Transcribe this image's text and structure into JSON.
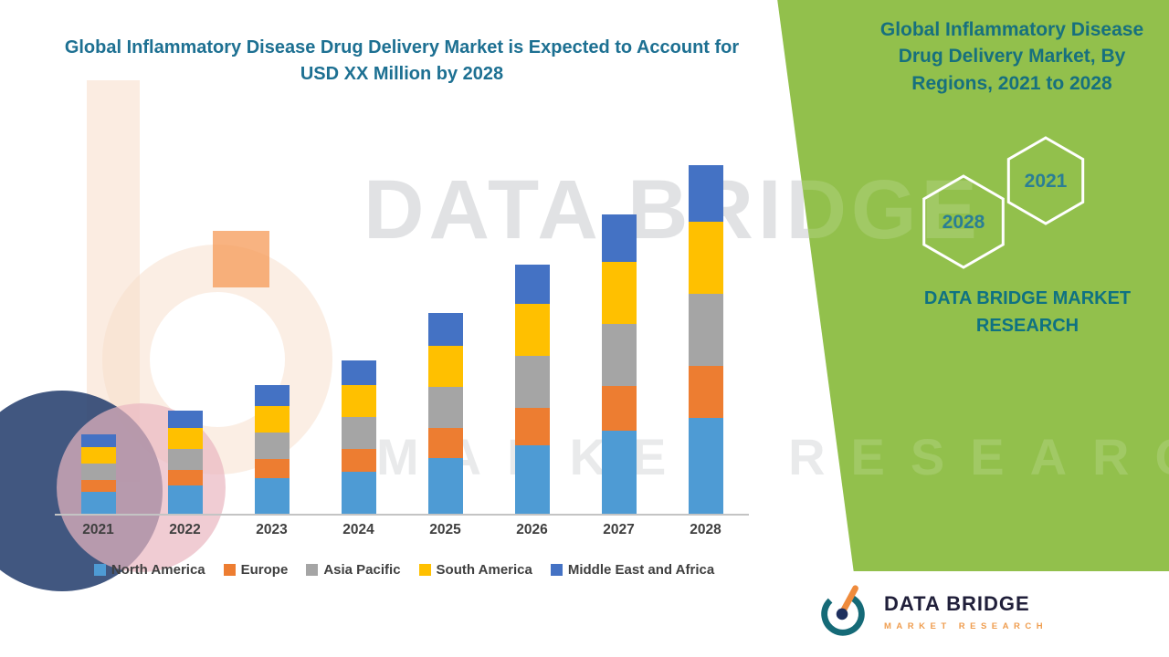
{
  "chart_data": {
    "type": "bar",
    "stacked": true,
    "title": "Global Inflammatory Disease Drug Delivery Market is Expected to Account for USD XX Million by 2028",
    "categories": [
      "2021",
      "2022",
      "2023",
      "2024",
      "2025",
      "2026",
      "2027",
      "2028"
    ],
    "series": [
      {
        "name": "North America",
        "color": "#4E9BD4",
        "values": [
          24,
          31,
          39,
          46,
          61,
          75,
          91,
          105
        ]
      },
      {
        "name": "Europe",
        "color": "#ED7D31",
        "values": [
          13,
          17,
          21,
          25,
          33,
          41,
          49,
          57
        ]
      },
      {
        "name": "Asia Pacific",
        "color": "#A5A5A5",
        "values": [
          18,
          23,
          29,
          35,
          45,
          57,
          68,
          79
        ]
      },
      {
        "name": "South America",
        "color": "#FFC000",
        "values": [
          18,
          23,
          29,
          35,
          45,
          57,
          68,
          79
        ]
      },
      {
        "name": "Middle East and Africa",
        "color": "#4472C4",
        "values": [
          14,
          19,
          23,
          27,
          36,
          43,
          52,
          62
        ]
      }
    ],
    "ylim": [
      0,
      400
    ],
    "y_axis_visible": false,
    "grid": false,
    "legend_position": "bottom"
  },
  "header": {
    "title": "Global Inflammatory Disease Drug Delivery Market is Expected to Account for USD XX Million by 2028"
  },
  "right_panel": {
    "title": "Global Inflammatory Disease Drug Delivery Market, By Regions, 2021 to 2028",
    "hexagons": {
      "back_year": "2028",
      "front_year": "2021"
    },
    "company": "DATA BRIDGE MARKET RESEARCH",
    "colors": {
      "background_green": "#92c04c",
      "text_teal": "#0f7282"
    }
  },
  "watermark": {
    "line1": "DATA BRIDGE",
    "line2": "MARKET RESEARCH"
  },
  "footer": {
    "brand": "DATA BRIDGE",
    "tagline": "MARKET RESEARCH"
  },
  "colors": {
    "title_teal": "#1d7092",
    "axis_label_gray": "#3f3f3f"
  }
}
